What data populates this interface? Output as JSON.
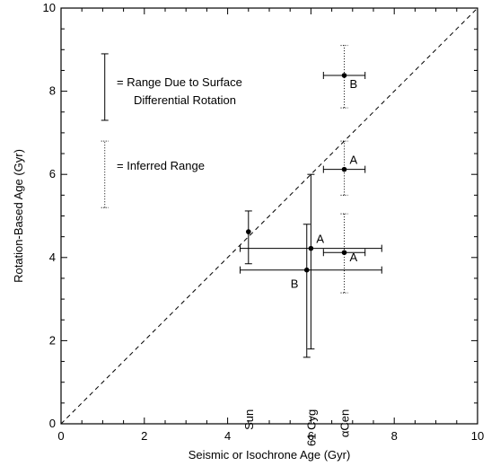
{
  "chart_data": {
    "type": "scatter",
    "xlabel": "Seismic or Isochrone Age (Gyr)",
    "ylabel": "Rotation-Based Age (Gyr)",
    "xlim": [
      0,
      10
    ],
    "ylim": [
      0,
      10
    ],
    "x_ticks": [
      0,
      2,
      4,
      6,
      8,
      10
    ],
    "y_ticks": [
      0,
      2,
      4,
      6,
      8,
      10
    ],
    "x_tick_labels": [
      "0",
      "2",
      "4",
      "6",
      "8",
      "10"
    ],
    "y_tick_labels": [
      "0",
      "2",
      "4",
      "6",
      "8",
      "10"
    ],
    "grid": false,
    "reference_line": {
      "style": "dashed",
      "x": [
        0,
        10
      ],
      "y": [
        0,
        10
      ]
    },
    "legend": {
      "placement": "top-left",
      "entries": [
        {
          "style": "solid",
          "label_lines": [
            "= Range Due to Surface",
            "Differential Rotation"
          ]
        },
        {
          "style": "dotted",
          "label_lines": [
            "= Inferred Range"
          ]
        }
      ]
    },
    "points": [
      {
        "x": 4.5,
        "y": 4.62,
        "label": "",
        "x_range": null,
        "y_solid": [
          3.85,
          5.12
        ],
        "y_dotted": null
      },
      {
        "x": 6.0,
        "y": 4.22,
        "label": "A",
        "x_range": [
          4.3,
          7.7
        ],
        "y_solid": [
          1.8,
          6.0
        ],
        "y_dotted": null
      },
      {
        "x": 5.9,
        "y": 3.7,
        "label": "B",
        "x_range": [
          4.3,
          7.7
        ],
        "y_solid": [
          1.6,
          4.8
        ],
        "y_dotted": null
      },
      {
        "x": 6.8,
        "y": 6.12,
        "label": "A",
        "x_range": [
          6.3,
          7.3
        ],
        "y_solid": null,
        "y_dotted": [
          5.5,
          6.8
        ]
      },
      {
        "x": 6.8,
        "y": 4.12,
        "label": "A",
        "x_range": [
          6.3,
          7.3
        ],
        "y_solid": null,
        "y_dotted": [
          3.15,
          5.05
        ]
      },
      {
        "x": 6.8,
        "y": 8.38,
        "label": "B",
        "x_range": [
          6.3,
          7.3
        ],
        "y_solid": null,
        "y_dotted": [
          7.6,
          9.1
        ]
      }
    ],
    "star_names": [
      {
        "text": "Sun",
        "x": 4.5
      },
      {
        "text": "61 Cyg",
        "x": 6.0
      },
      {
        "text": "αCen",
        "x": 6.8
      }
    ]
  }
}
